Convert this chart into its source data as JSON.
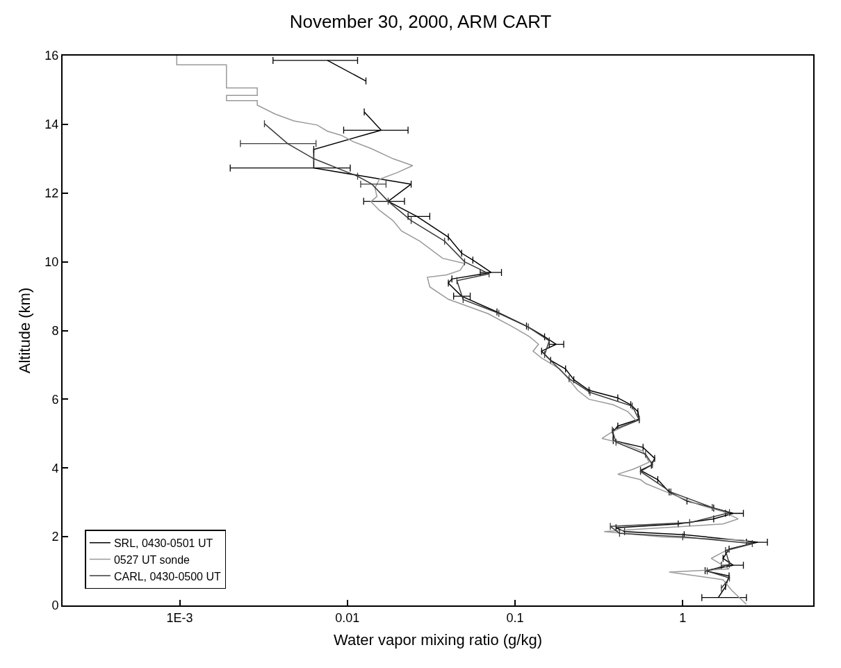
{
  "chart_data": {
    "type": "line",
    "title": "November 30, 2000, ARM CART",
    "xlabel": "Water vapor mixing ratio (g/kg)",
    "ylabel": "Altitude (km)",
    "log": "x",
    "legend": "bottom left",
    "xlim": [
      0.0002,
      6
    ],
    "xticks": [
      {
        "value": 0.001,
        "label": "1E-3"
      },
      0.01,
      0.1,
      1
    ],
    "ylim": [
      0,
      16
    ],
    "yticks": [
      0,
      2,
      4,
      6,
      8,
      10,
      12,
      14,
      16
    ],
    "series": [
      {
        "name": "SRL, 0430-0501 UT",
        "color": "#000000",
        "x": [
          0.0076,
          0.0129,
          null,
          0.0126,
          0.0159,
          0.0063,
          0.0063,
          0.024,
          0.0175,
          0.026,
          0.04,
          0.048,
          0.056,
          0.072,
          0.042,
          0.04,
          0.048,
          0.078,
          0.117,
          0.15,
          0.176,
          0.144,
          0.163,
          0.2,
          0.224,
          0.276,
          0.41,
          0.49,
          0.54,
          0.55,
          0.41,
          0.385,
          0.385,
          0.58,
          0.68,
          0.65,
          0.56,
          0.71,
          0.83,
          1.06,
          1.53,
          2.0,
          1.53,
          0.94,
          0.4,
          0.45,
          1.02,
          2.8,
          1.89,
          1.74,
          2.0,
          1.36,
          1.89,
          1.8,
          1.63
        ],
        "values": [
          15.86,
          15.26,
          null,
          14.36,
          13.83,
          13.27,
          12.73,
          12.26,
          11.76,
          11.32,
          10.72,
          10.25,
          10.05,
          9.69,
          9.5,
          9.38,
          9.0,
          8.54,
          8.13,
          7.82,
          7.6,
          7.4,
          7.13,
          6.88,
          6.57,
          6.26,
          6.04,
          5.84,
          5.64,
          5.42,
          5.22,
          5.06,
          4.8,
          4.6,
          4.28,
          4.08,
          3.93,
          3.66,
          3.3,
          3.04,
          2.83,
          2.68,
          2.52,
          2.37,
          2.26,
          2.15,
          2.06,
          1.84,
          1.64,
          1.37,
          1.17,
          1.01,
          0.86,
          0.55,
          0.23
        ],
        "xerrors": [
          [
            0.0036,
            0.0115
          ],
          null,
          null,
          null,
          [
            0.0095,
            0.023
          ],
          null,
          [
            0.002,
            0.0104
          ],
          null,
          [
            0.0125,
            0.0219
          ],
          [
            0.023,
            0.031
          ],
          null,
          null,
          null,
          [
            0.062,
            0.083
          ],
          null,
          null,
          [
            0.043,
            0.054
          ],
          null,
          null,
          null,
          [
            0.16,
            0.195
          ],
          null,
          null,
          null,
          null,
          null,
          null,
          null,
          null,
          null,
          null,
          null,
          null,
          null,
          null,
          null,
          null,
          null,
          null,
          null,
          null,
          [
            1.8,
            2.3
          ],
          null,
          null,
          null,
          null,
          null,
          [
            2.4,
            3.2
          ],
          null,
          null,
          [
            1.7,
            2.3
          ],
          null,
          null,
          null,
          [
            1.3,
            2.4
          ]
        ]
      },
      {
        "name": "0527 UT sonde",
        "color": "#999999",
        "x": [
          0.00096,
          0.00096,
          0.0019,
          0.0019,
          0.0029,
          0.0029,
          0.0019,
          0.0019,
          0.0029,
          0.0029,
          0.0037,
          0.0048,
          0.0066,
          0.0076,
          0.0092,
          0.0108,
          0.0138,
          0.0187,
          0.0245,
          0.0199,
          0.0155,
          0.0146,
          0.015,
          0.0138,
          0.0155,
          0.0187,
          0.021,
          0.027,
          0.037,
          0.05,
          0.047,
          0.039,
          0.03,
          0.031,
          0.04,
          0.069,
          0.095,
          0.122,
          0.138,
          0.128,
          0.144,
          0.185,
          0.21,
          0.236,
          0.276,
          0.385,
          0.47,
          0.53,
          0.45,
          0.37,
          0.33,
          0.45,
          0.58,
          0.63,
          0.51,
          0.41,
          0.56,
          0.6,
          0.86,
          1.25,
          1.74,
          2.14,
          1.74,
          0.51,
          0.34,
          0.76,
          2.3,
          2.6,
          1.8,
          1.48,
          1.89,
          0.83,
          1.74,
          1.96,
          2.4
        ],
        "values": [
          16,
          15.73,
          15.73,
          15.06,
          15.06,
          14.84,
          14.84,
          14.69,
          14.69,
          14.56,
          14.3,
          14.1,
          13.98,
          13.8,
          13.68,
          13.5,
          13.3,
          13.0,
          12.8,
          12.6,
          12.4,
          12.15,
          11.9,
          11.75,
          11.5,
          11.2,
          10.9,
          10.6,
          10.1,
          9.95,
          9.75,
          9.62,
          9.55,
          9.27,
          8.91,
          8.49,
          8.13,
          7.82,
          7.6,
          7.4,
          7.2,
          6.88,
          6.57,
          6.26,
          6.0,
          5.84,
          5.64,
          5.37,
          5.22,
          5.02,
          4.86,
          4.7,
          4.49,
          4.17,
          3.97,
          3.82,
          3.66,
          3.55,
          3.24,
          2.93,
          2.73,
          2.52,
          2.37,
          2.21,
          2.15,
          1.99,
          1.9,
          1.79,
          1.59,
          1.37,
          1.06,
          0.97,
          0.75,
          0.44,
          0.03
        ]
      },
      {
        "name": "CARL, 0430-0500 UT",
        "color": "#3a3a3a",
        "x": [
          0.0032,
          0.0044,
          0.0063,
          0.0115,
          0.014,
          0.0175,
          0.024,
          0.038,
          0.05,
          0.07,
          0.045,
          0.049,
          0.08,
          0.12,
          0.16,
          0.15,
          0.21,
          0.28,
          0.5,
          0.55,
          0.38,
          0.4,
          0.6,
          0.66,
          0.56,
          0.85,
          1.5,
          1.9,
          1.1,
          0.37,
          0.42,
          1.0,
          2.6,
          1.8,
          1.9,
          1.4,
          1.9,
          1.7
        ],
        "values": [
          14.02,
          13.44,
          13.0,
          12.49,
          12.26,
          11.76,
          11.2,
          10.6,
          10.0,
          9.65,
          9.45,
          8.9,
          8.5,
          8.1,
          7.7,
          7.3,
          6.6,
          6.2,
          5.8,
          5.4,
          5.1,
          4.75,
          4.4,
          4.1,
          3.9,
          3.3,
          2.85,
          2.7,
          2.41,
          2.3,
          2.1,
          2.0,
          1.8,
          1.6,
          1.2,
          1.0,
          0.8,
          0.5
        ],
        "xerrors": [
          null,
          [
            0.0023,
            0.0065
          ],
          null,
          null,
          [
            0.012,
            0.017
          ],
          null,
          null,
          null,
          null,
          null,
          null,
          null,
          null,
          null,
          null,
          null,
          null,
          null,
          null,
          null,
          null,
          null,
          null,
          null,
          null,
          null,
          null,
          null,
          null,
          null,
          null,
          null,
          null,
          null,
          null,
          null,
          null,
          null
        ]
      }
    ]
  }
}
